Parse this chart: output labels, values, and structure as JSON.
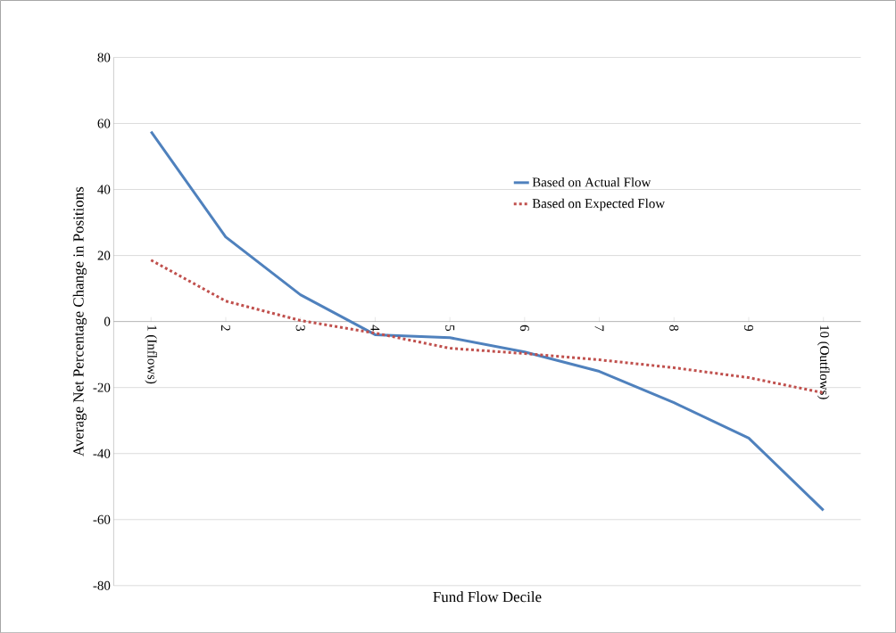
{
  "chart_data": {
    "type": "line",
    "xlabel": "Fund Flow Decile",
    "ylabel": "Average Net Percentage Change in Positions",
    "categories": [
      "1 (Inflows)",
      "2",
      "3",
      "4",
      "5",
      "6",
      "7",
      "8",
      "9",
      "10 (Outflows)"
    ],
    "series": [
      {
        "name": "Based on Actual Flow",
        "color": "#4f81bd",
        "line_style": "solid",
        "values": [
          57.5,
          25.6,
          8.1,
          -4,
          -4.9,
          -9.2,
          -15.1,
          -24.6,
          -35.3,
          -57.2
        ]
      },
      {
        "name": "Based on Expected  Flow",
        "color": "#c0504d",
        "line_style": "dashed",
        "values": [
          18.6,
          6.2,
          0.3,
          -3.5,
          -8.1,
          -9.7,
          -11.6,
          -14,
          -17,
          -21.6
        ]
      }
    ],
    "ylim": [
      -80,
      80
    ],
    "yticks": [
      -80,
      -60,
      -40,
      -20,
      0,
      20,
      40,
      60,
      80
    ],
    "grid": "y",
    "legend": "top right"
  }
}
